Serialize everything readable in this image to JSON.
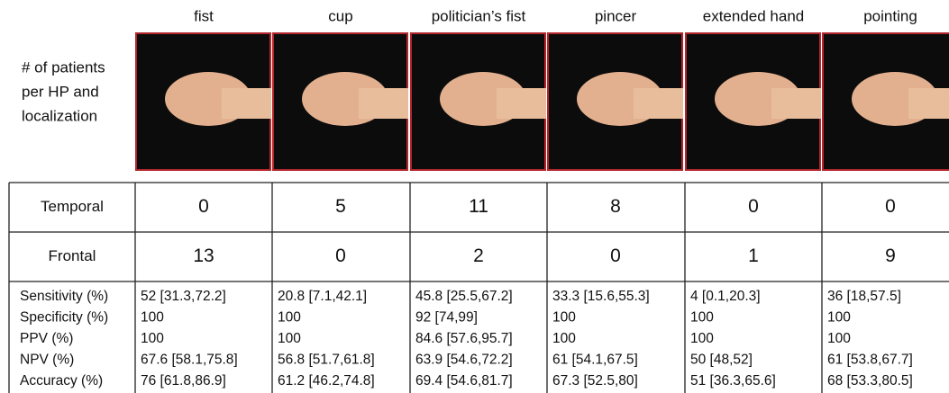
{
  "columns": [
    "fist",
    "cup",
    "politician’s fist",
    "pincer",
    "extended hand",
    "pointing"
  ],
  "row_label": [
    "# of patients",
    "per HP and",
    "localization"
  ],
  "table": {
    "rows": [
      {
        "label": "Temporal",
        "values": [
          0,
          5,
          11,
          8,
          0,
          0
        ]
      },
      {
        "label": "Frontal",
        "values": [
          13,
          0,
          2,
          0,
          1,
          9
        ]
      }
    ]
  },
  "metrics": {
    "labels": [
      "Sensitivity (%)",
      "Specificity (%)",
      "PPV (%)",
      "NPV (%)",
      "Accuracy (%)"
    ],
    "values": [
      [
        "52 [31.3,72.2]",
        "100",
        "100",
        "67.6 [58.1,75.8]",
        "76 [61.8,86.9]"
      ],
      [
        "20.8 [7.1,42.1]",
        "100",
        "100",
        "56.8 [51.7,61.8]",
        "61.2 [46.2,74.8]"
      ],
      [
        "45.8 [25.5,67.2]",
        "92 [74,99]",
        "84.6 [57.6,95.7]",
        "63.9 [54.6,72.2]",
        "69.4 [54.6,81.7]"
      ],
      [
        "33.3 [15.6,55.3]",
        "100",
        "100",
        "61 [54.1,67.5]",
        "67.3 [52.5,80]"
      ],
      [
        "4 [0.1,20.3]",
        "100",
        "100",
        "50 [48,52]",
        "51 [36.3,65.6]"
      ],
      [
        "36 [18,57.5]",
        "100",
        "100",
        "61 [53.8,67.7]",
        "68 [53.3,80.5]"
      ]
    ]
  }
}
